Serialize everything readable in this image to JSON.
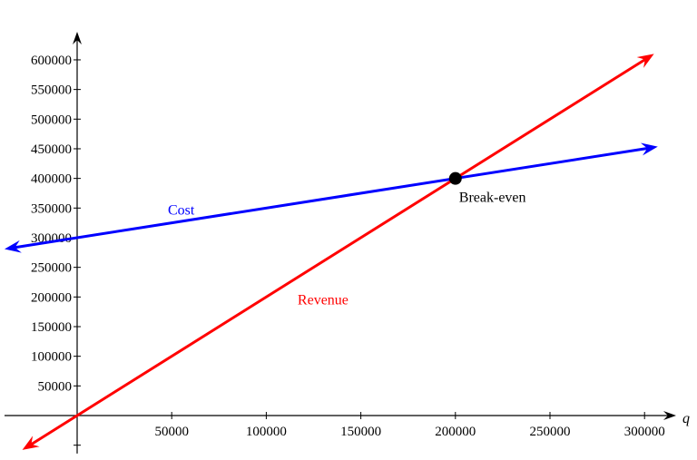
{
  "chart_data": {
    "type": "line",
    "title": "",
    "xlabel": "q",
    "ylabel": "",
    "xlim": [
      -38400,
      316800
    ],
    "ylim": [
      -64000,
      648000
    ],
    "grid": false,
    "x_ticks": [
      50000,
      100000,
      150000,
      200000,
      250000,
      300000
    ],
    "x_tick_labels": [
      "50000",
      "100000",
      "150000",
      "200000",
      "250000",
      "300000"
    ],
    "y_ticks": [
      50000,
      100000,
      150000,
      200000,
      250000,
      300000,
      350000,
      400000,
      450000,
      500000,
      550000,
      600000
    ],
    "y_tick_labels": [
      "50000",
      "100000",
      "150000",
      "200000",
      "250000",
      "300000",
      "350000",
      "400000",
      "450000",
      "500000",
      "550000",
      "600000"
    ],
    "series": [
      {
        "name": "Cost",
        "color": "#0000ff",
        "x": [
          -38400,
          307000
        ],
        "y": [
          280800,
          453500
        ],
        "label_at": [
          55000,
          345000
        ]
      },
      {
        "name": "Revenue",
        "color": "#ff0000",
        "x": [
          -29000,
          305000
        ],
        "y": [
          -58000,
          610000
        ],
        "label_at": [
          130000,
          195000
        ]
      }
    ],
    "annotations": [
      {
        "text": "Break-even",
        "x": 200000,
        "y": 400000,
        "color": "#000000"
      }
    ]
  }
}
